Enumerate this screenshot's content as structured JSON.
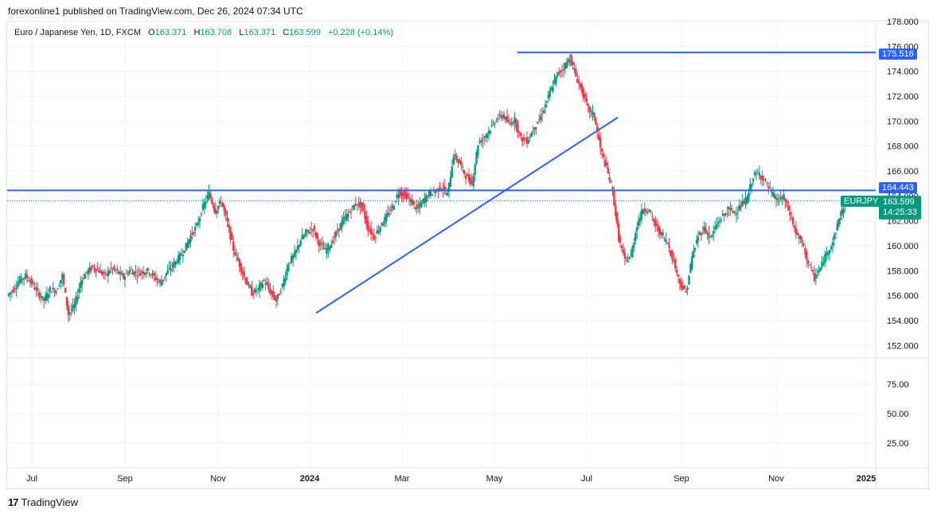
{
  "header": {
    "published": "forexonline1 published on TradingView.com, Dec 26, 2024 07:34 UTC"
  },
  "legend": {
    "symbol": "Euro / Japanese Yen, 1D, FXCM",
    "o_label": "O",
    "o_value": "163.371",
    "h_label": "H",
    "h_value": "163.708",
    "l_label": "L",
    "l_value": "163.371",
    "c_label": "C",
    "c_value": "163.599",
    "change": "+0.228 (+0.14%)"
  },
  "tags": {
    "top_line": "175.516",
    "mid_line": "164.443",
    "ticker": "EURJPY",
    "price": "163.599",
    "countdown": "14:25:33"
  },
  "footer": {
    "brand": "TradingView"
  },
  "colors": {
    "up": "#089981",
    "down": "#f23645",
    "line": "#2962ff",
    "grid": "#f0f3fa"
  },
  "chart_data": {
    "type": "candlestick",
    "symbol": "EURJPY",
    "ylim": [
      151,
      178
    ],
    "y_ticks": [
      "178.000",
      "176.000",
      "174.000",
      "172.000",
      "170.000",
      "168.000",
      "166.000",
      "164.000",
      "162.000",
      "160.000",
      "158.000",
      "156.000",
      "154.000",
      "152.000"
    ],
    "x_ticks": [
      "Jul",
      "Sep",
      "Nov",
      "2024",
      "Mar",
      "May",
      "Jul",
      "Sep",
      "Nov",
      "2025"
    ],
    "lower_pane_ticks": [
      "75.00",
      "50.00",
      "25.00"
    ],
    "horizontal_lines": [
      175.516,
      164.443
    ],
    "current_price": 163.599,
    "trendline": [
      {
        "date": "2024-01-03",
        "value": 154.6
      },
      {
        "date": "2024-07-18",
        "value": 170.3
      }
    ],
    "closes_weekly": [
      156.0,
      156.5,
      157.2,
      157.6,
      157.0,
      156.2,
      155.6,
      156.5,
      156.4,
      157.6,
      154.5,
      155.2,
      157.1,
      157.9,
      158.3,
      158.0,
      157.6,
      158.2,
      157.9,
      157.5,
      158.0,
      157.8,
      157.9,
      158.0,
      157.5,
      157.0,
      157.8,
      158.4,
      159.0,
      159.7,
      160.8,
      161.6,
      163.1,
      164.2,
      162.8,
      163.6,
      161.8,
      159.7,
      158.5,
      157.2,
      156.2,
      156.5,
      157.2,
      156.3,
      155.6,
      156.8,
      158.6,
      159.3,
      160.5,
      161.1,
      161.4,
      160.2,
      159.6,
      160.2,
      161.2,
      162.1,
      162.7,
      163.4,
      163.2,
      161.4,
      160.7,
      161.6,
      162.3,
      163.1,
      164.3,
      164.1,
      163.6,
      162.9,
      163.6,
      164.2,
      164.4,
      164.7,
      164.1,
      167.3,
      166.6,
      165.6,
      165.0,
      168.2,
      168.7,
      169.4,
      170.2,
      170.5,
      169.8,
      170.1,
      168.6,
      168.4,
      169.3,
      170.1,
      171.3,
      172.6,
      173.8,
      174.3,
      175.1,
      173.6,
      172.4,
      171.0,
      170.4,
      167.8,
      166.2,
      164.4,
      160.6,
      158.8,
      159.2,
      161.7,
      163.0,
      162.8,
      161.6,
      160.9,
      160.2,
      158.7,
      157.0,
      156.2,
      159.1,
      160.8,
      161.4,
      160.6,
      161.7,
      162.4,
      162.9,
      162.7,
      163.2,
      163.8,
      165.6,
      165.8,
      165.1,
      164.2,
      163.6,
      163.9,
      162.5,
      161.0,
      160.2,
      158.6,
      157.4,
      158.2,
      159.4,
      160.3,
      162.1,
      163.4,
      163.599
    ]
  }
}
